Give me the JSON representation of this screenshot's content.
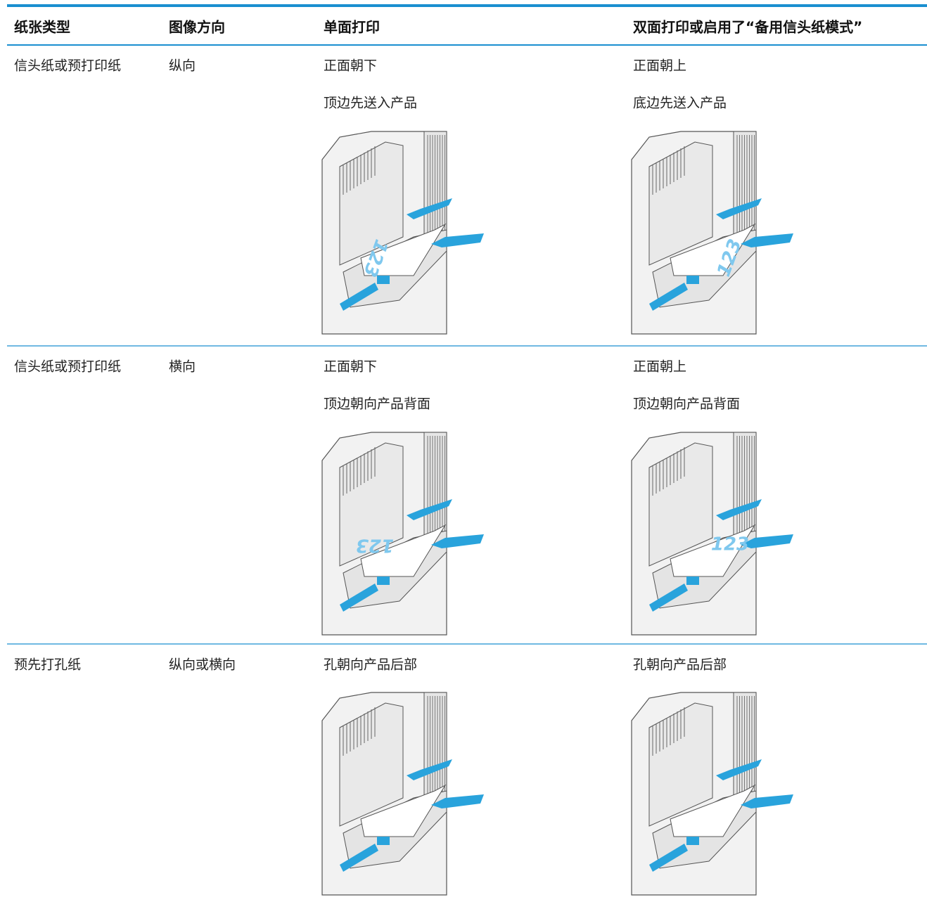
{
  "header": {
    "columns": [
      "纸张类型",
      "图像方向",
      "单面打印",
      "双面打印或启用了“备用信头纸模式”"
    ]
  },
  "table": {
    "rows": [
      {
        "paper_type": "信头纸或预打印纸",
        "orientation": "纵向",
        "single": [
          "正面朝下",
          "顶边先送入产品"
        ],
        "duplex": [
          "正面朝上",
          "底边先送入产品"
        ]
      },
      {
        "paper_type": "信头纸或预打印纸",
        "orientation": "横向",
        "single": [
          "正面朝下",
          "顶边朝向产品背面"
        ],
        "duplex": [
          "正面朝上",
          "顶边朝向产品背面"
        ]
      },
      {
        "paper_type": "预先打孔纸",
        "orientation": "纵向或横向",
        "single": [
          "孔朝向产品后部"
        ],
        "duplex": [
          "孔朝向产品后部"
        ]
      }
    ]
  },
  "illustration_text": "123"
}
